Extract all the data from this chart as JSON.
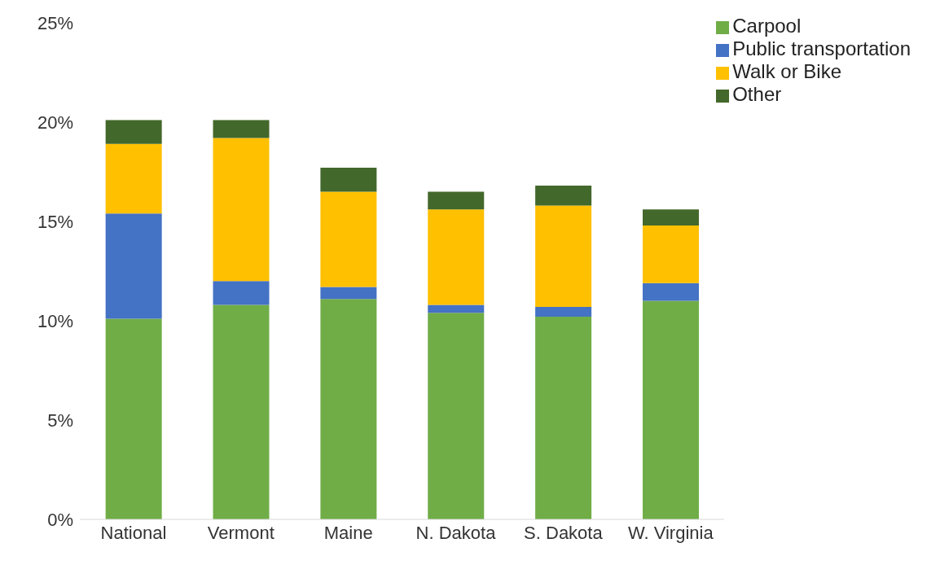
{
  "chart_data": {
    "type": "bar",
    "stacked": true,
    "categories": [
      "National",
      "Vermont",
      "Maine",
      "N. Dakota",
      "S. Dakota",
      "W. Virginia"
    ],
    "series": [
      {
        "name": "Carpool",
        "color": "#70ad47",
        "values": [
          10.1,
          10.8,
          11.1,
          10.4,
          10.2,
          11.0
        ]
      },
      {
        "name": "Public transportation",
        "color": "#4472c4",
        "values": [
          5.3,
          1.2,
          0.6,
          0.4,
          0.5,
          0.9
        ]
      },
      {
        "name": "Walk or Bike",
        "color": "#ffc000",
        "values": [
          3.5,
          7.2,
          4.8,
          4.8,
          5.1,
          2.9
        ]
      },
      {
        "name": "Other",
        "color": "#43682b",
        "values": [
          1.2,
          0.9,
          1.2,
          0.9,
          1.0,
          0.8
        ]
      }
    ],
    "ylim": [
      0,
      25
    ],
    "yticks": [
      {
        "value": 0,
        "label": "0%"
      },
      {
        "value": 5,
        "label": "5%"
      },
      {
        "value": 10,
        "label": "10%"
      },
      {
        "value": 15,
        "label": "15%"
      },
      {
        "value": 20,
        "label": "20%"
      },
      {
        "value": 25,
        "label": "25%"
      }
    ],
    "grid": false,
    "legend": "top right"
  }
}
